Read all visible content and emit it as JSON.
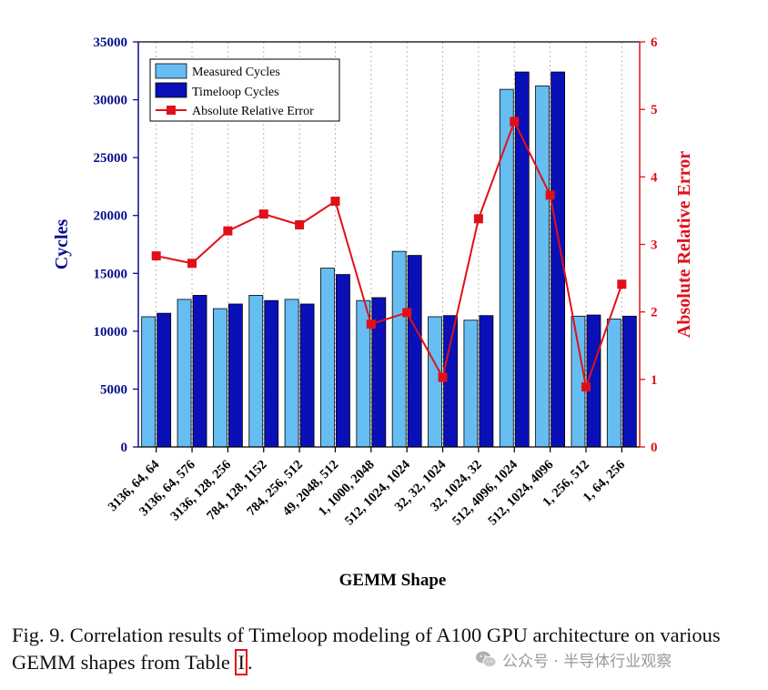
{
  "chart_data": {
    "type": "bar+line",
    "categories": [
      "3136, 64, 64",
      "3136, 64, 576",
      "3136, 128, 256",
      "784, 128, 1152",
      "784, 256, 512",
      "49, 2048, 512",
      "1, 1000, 2048",
      "512, 1024, 1024",
      "32, 32, 1024",
      "32, 1024, 32",
      "512, 4096, 1024",
      "512, 1024, 4096",
      "1, 256, 512",
      "1, 64, 256"
    ],
    "series": [
      {
        "name": "Measured Cycles",
        "type": "bar",
        "axis": "left",
        "color": "#66bdf2",
        "values": [
          11250,
          12750,
          11950,
          13100,
          12750,
          15450,
          12650,
          16900,
          11250,
          10950,
          30900,
          31200,
          11300,
          11050
        ]
      },
      {
        "name": "Timeloop Cycles",
        "type": "bar",
        "axis": "left",
        "color": "#0a10b8",
        "values": [
          11550,
          13100,
          12350,
          12650,
          12350,
          14900,
          12900,
          16550,
          11350,
          11350,
          32400,
          32400,
          11400,
          11300
        ]
      },
      {
        "name": "Absolute Relative Error",
        "type": "line",
        "axis": "right",
        "color": "#e0101a",
        "values": [
          2.83,
          2.72,
          3.2,
          3.45,
          3.29,
          3.64,
          1.82,
          1.99,
          1.03,
          3.38,
          4.82,
          3.73,
          0.89,
          2.41
        ]
      }
    ],
    "xlabel": "GEMM Shape",
    "ylabel": "Cycles",
    "y2label": "Absolute Relative Error",
    "ylim": [
      0,
      35000
    ],
    "y2lim": [
      0,
      6
    ],
    "yticks": [
      "0",
      "5000",
      "10000",
      "15000",
      "20000",
      "25000",
      "30000",
      "35000"
    ],
    "y2ticks": [
      "0",
      "1",
      "2",
      "3",
      "4",
      "5",
      "6"
    ],
    "legend_position": "top-left",
    "grid": "vertical dotted"
  },
  "caption": {
    "text": "Fig. 9.  Correlation results of Timeloop modeling of A100 GPU architecture on various GEMM shapes from Table",
    "ref": "I",
    "end": "."
  },
  "watermark": {
    "text": "公众号 · 半导体行业观察",
    "icon": "wechat-icon"
  }
}
